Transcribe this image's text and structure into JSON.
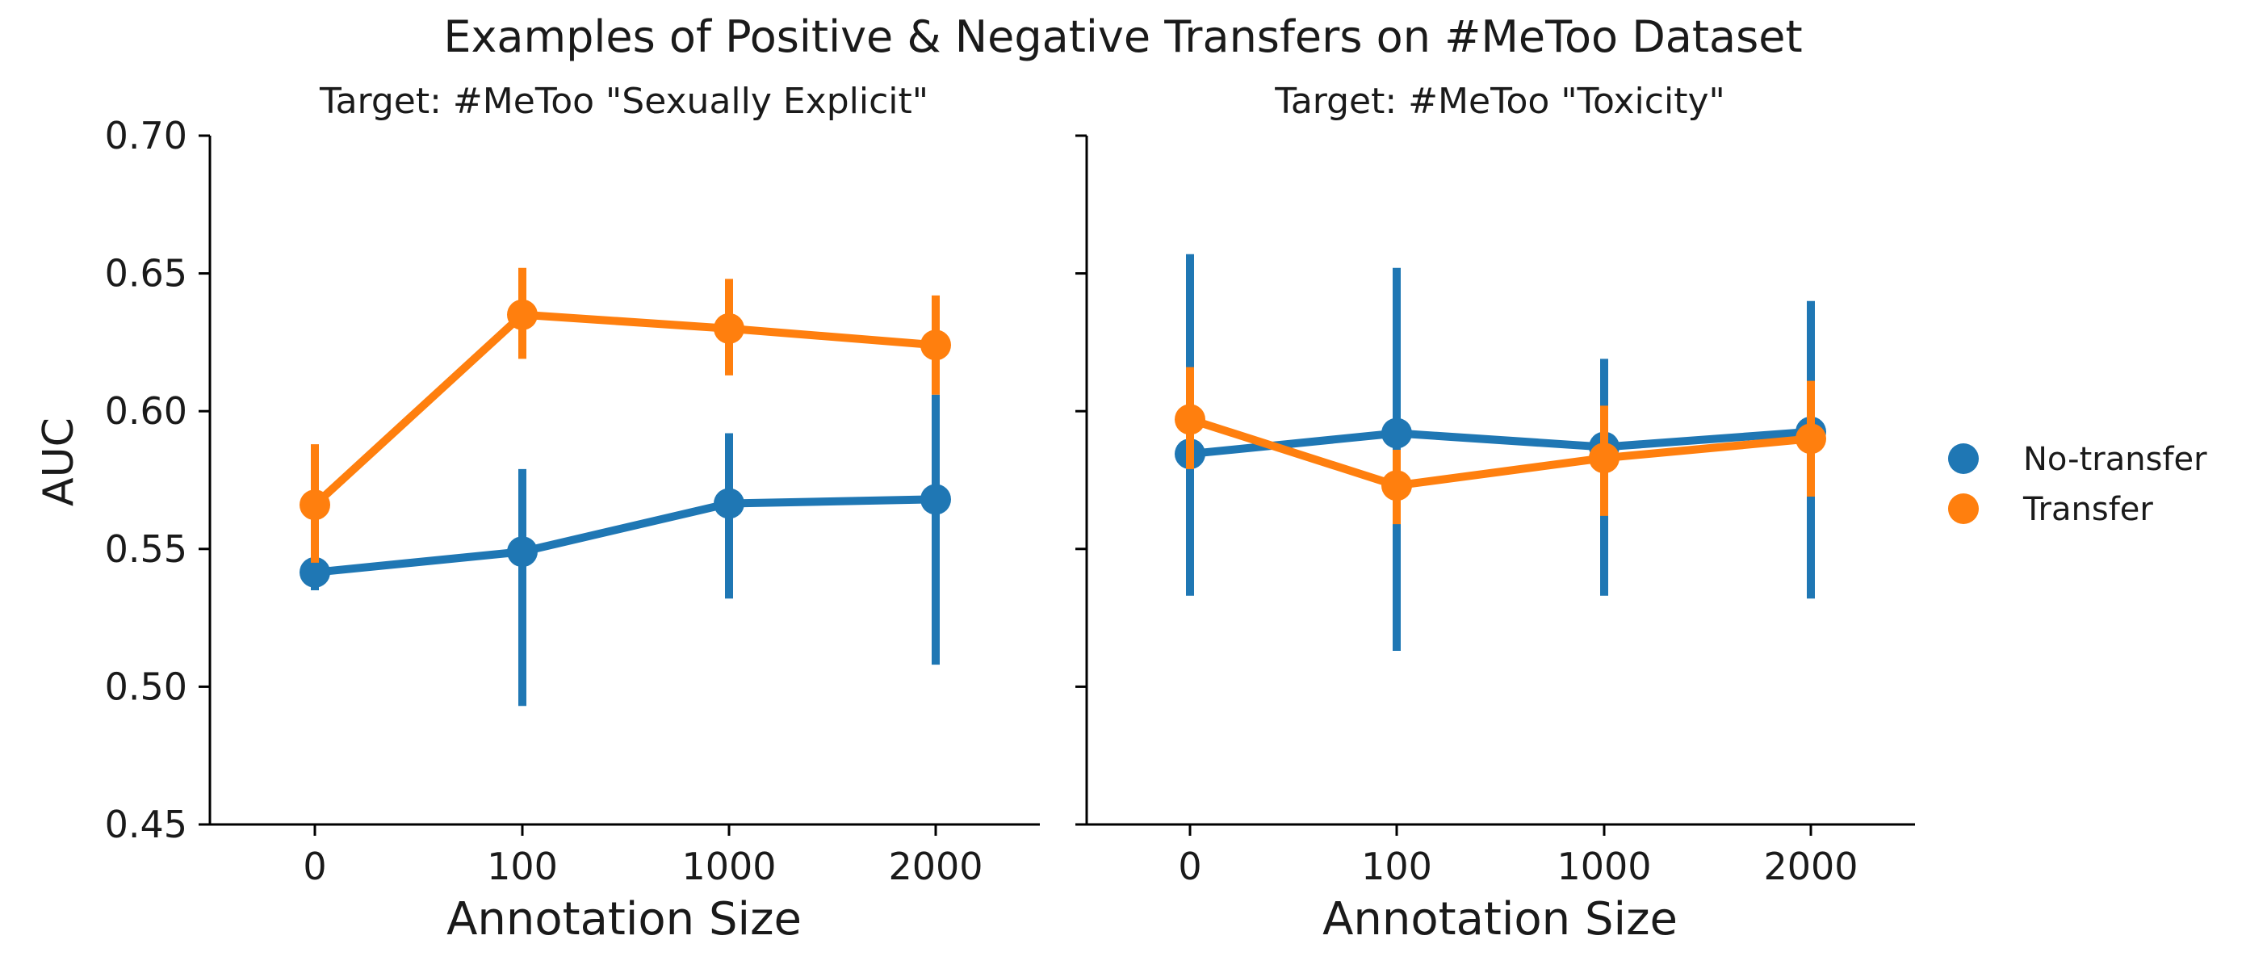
{
  "chart_data": {
    "type": "line",
    "title": "Examples of Positive & Negative Transfers on #MeToo Dataset",
    "ylabel": "AUC",
    "ylim": [
      0.45,
      0.7
    ],
    "yticks": [
      "0.45",
      "0.50",
      "0.55",
      "0.60",
      "0.65",
      "0.70"
    ],
    "legend_position": "right",
    "colors": {
      "No-transfer": "#1f77b4",
      "Transfer": "#ff7f0e"
    },
    "legend": [
      "No-transfer",
      "Transfer"
    ],
    "panels": [
      {
        "title": "Target: #MeToo \"Sexually Explicit\"",
        "xlabel": "Annotation Size",
        "categories": [
          "0",
          "100",
          "1000",
          "2000"
        ],
        "series": [
          {
            "name": "No-transfer",
            "values": [
              0.5415,
              0.549,
              0.5665,
              0.568
            ],
            "ci_low": [
              0.535,
              0.493,
              0.532,
              0.508
            ],
            "ci_high": [
              0.548,
              0.579,
              0.592,
              0.606
            ]
          },
          {
            "name": "Transfer",
            "values": [
              0.566,
              0.635,
              0.63,
              0.624
            ],
            "ci_low": [
              0.545,
              0.619,
              0.613,
              0.606
            ],
            "ci_high": [
              0.588,
              0.652,
              0.648,
              0.642
            ]
          }
        ]
      },
      {
        "title": "Target: #MeToo \"Toxicity\"",
        "xlabel": "Annotation Size",
        "categories": [
          "0",
          "100",
          "1000",
          "2000"
        ],
        "series": [
          {
            "name": "No-transfer",
            "values": [
              0.5845,
              0.592,
              0.587,
              0.5925
            ],
            "ci_low": [
              0.533,
              0.513,
              0.533,
              0.532
            ],
            "ci_high": [
              0.657,
              0.652,
              0.619,
              0.64
            ]
          },
          {
            "name": "Transfer",
            "values": [
              0.597,
              0.573,
              0.583,
              0.59
            ],
            "ci_low": [
              0.579,
              0.559,
              0.562,
              0.569
            ],
            "ci_high": [
              0.616,
              0.586,
              0.602,
              0.611
            ]
          }
        ]
      }
    ]
  }
}
